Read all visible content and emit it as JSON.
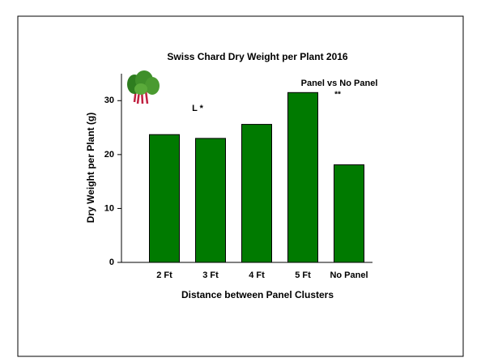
{
  "chart_data": {
    "type": "bar",
    "title": "Swiss Chard Dry Weight per Plant 2016",
    "x_label": "Distance between Panel Clusters",
    "y_label": "Dry Weight per Plant (g)",
    "categories": [
      "2 Ft",
      "3 Ft",
      "4 Ft",
      "5 Ft",
      "No Panel"
    ],
    "values": [
      23.7,
      23.0,
      25.6,
      31.5,
      18.1
    ],
    "color": "#007a00",
    "ylim": [
      0,
      35
    ],
    "yticks": [
      0,
      10,
      20,
      30
    ],
    "annotations": [
      "L  *",
      "Panel vs No Panel",
      "**"
    ]
  }
}
